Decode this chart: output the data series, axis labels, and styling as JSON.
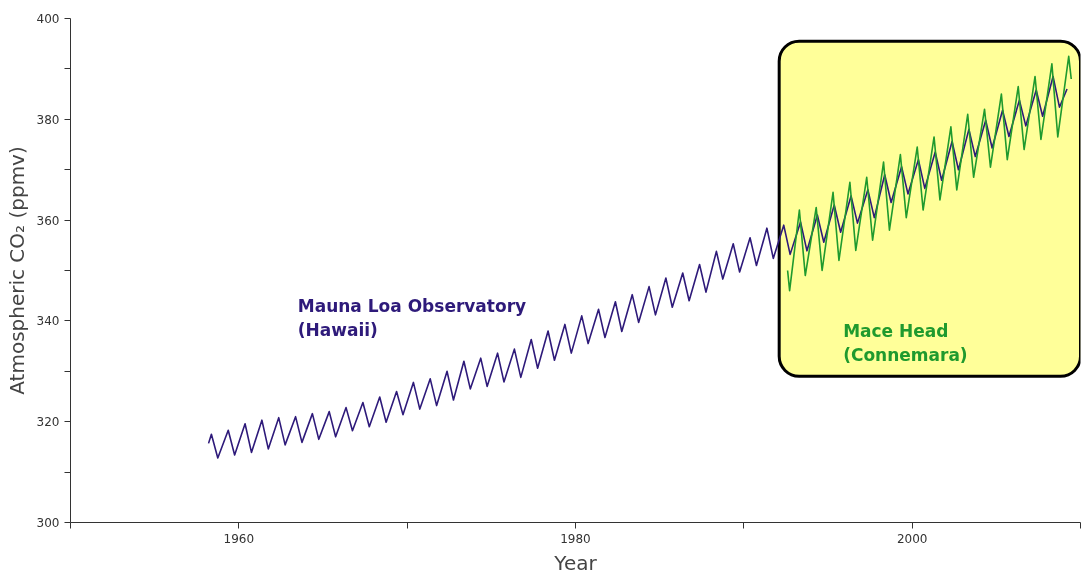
{
  "chart_data": {
    "type": "line",
    "xlabel": "Year",
    "ylabel": "Atmospheric CO₂ (ppmv)",
    "xlim": [
      1950,
      2010
    ],
    "ylim": [
      300,
      400
    ],
    "xticks": [
      {
        "value": 1950,
        "label": null
      },
      1960,
      {
        "value": 1970,
        "label": null
      },
      1980,
      {
        "value": 1990,
        "label": null
      },
      2000,
      {
        "value": 2010,
        "label": null
      }
    ],
    "yticks": [
      300,
      {
        "value": 310,
        "label": null
      },
      320,
      {
        "value": 330,
        "label": null
      },
      340,
      {
        "value": 350,
        "label": null
      },
      360,
      {
        "value": 370,
        "label": null
      },
      380,
      {
        "value": 390,
        "label": null
      },
      400
    ],
    "bands": [
      {
        "axis": "x",
        "from": 1992.1,
        "to": 2010,
        "color": "#ffff99"
      }
    ],
    "grid": false,
    "line_style": "solid",
    "marker": "none",
    "series": [
      {
        "name": "Mauna Loa Observatory\n(Hawaii)",
        "color": "#2e1a7a",
        "x": [
          1958.2,
          1958.37,
          1958.75,
          1959.37,
          1959.75,
          1960.37,
          1960.75,
          1961.37,
          1961.75,
          1962.37,
          1962.75,
          1963.37,
          1963.75,
          1964.37,
          1964.75,
          1965.37,
          1965.75,
          1966.37,
          1966.75,
          1967.37,
          1967.75,
          1968.37,
          1968.75,
          1969.37,
          1969.75,
          1970.37,
          1970.75,
          1971.37,
          1971.75,
          1972.37,
          1972.75,
          1973.37,
          1973.75,
          1974.37,
          1974.75,
          1975.37,
          1975.75,
          1976.37,
          1976.75,
          1977.37,
          1977.75,
          1978.37,
          1978.75,
          1979.37,
          1979.75,
          1980.37,
          1980.75,
          1981.37,
          1981.75,
          1982.37,
          1982.75,
          1983.37,
          1983.75,
          1984.37,
          1984.75,
          1985.37,
          1985.75,
          1986.37,
          1986.75,
          1987.37,
          1987.75,
          1988.37,
          1988.75,
          1989.37,
          1989.75,
          1990.37,
          1990.75,
          1991.37,
          1991.75,
          1992.37,
          1992.75,
          1993.37,
          1993.75,
          1994.37,
          1994.75,
          1995.37,
          1995.75,
          1996.37,
          1996.75,
          1997.37,
          1997.75,
          1998.37,
          1998.75,
          1999.37,
          1999.75,
          2000.37,
          2000.75,
          2001.37,
          2001.75,
          2002.37,
          2002.75,
          2003.37,
          2003.75,
          2004.37,
          2004.75,
          2005.37,
          2005.75,
          2006.37,
          2006.75,
          2007.37,
          2007.75,
          2008.37,
          2008.75,
          2009.2
        ],
        "values": [
          315.7,
          317.5,
          312.8,
          318.3,
          313.4,
          319.6,
          313.9,
          320.3,
          314.6,
          320.8,
          315.4,
          321.0,
          315.9,
          321.6,
          316.5,
          322.0,
          317.0,
          322.8,
          318.2,
          323.8,
          319.0,
          324.9,
          319.9,
          326.0,
          321.4,
          327.8,
          322.5,
          328.5,
          323.2,
          330.0,
          324.3,
          332.0,
          326.5,
          332.6,
          327.0,
          333.6,
          327.9,
          334.4,
          328.8,
          336.3,
          330.6,
          338.0,
          332.2,
          339.3,
          333.6,
          341.0,
          335.5,
          342.3,
          336.7,
          343.8,
          337.9,
          345.2,
          339.7,
          346.8,
          341.2,
          348.5,
          342.7,
          349.5,
          344.0,
          351.2,
          345.7,
          353.8,
          348.3,
          355.3,
          349.7,
          356.5,
          351.0,
          358.4,
          352.4,
          359.0,
          353.2,
          359.6,
          353.9,
          361.0,
          355.6,
          363.0,
          357.6,
          364.8,
          359.4,
          366.0,
          360.5,
          369.0,
          363.5,
          370.6,
          365.2,
          372.0,
          366.3,
          373.5,
          367.9,
          375.6,
          370.0,
          378.0,
          372.6,
          379.8,
          374.3,
          381.8,
          376.6,
          383.8,
          378.7,
          385.8,
          380.6,
          388.5,
          382.4,
          386.0
        ]
      },
      {
        "name": "Mace Head\n(Connemara)",
        "color": "#1f9a2e",
        "x": [
          1992.6,
          1992.72,
          1993.3,
          1993.65,
          1994.3,
          1994.65,
          1995.3,
          1995.65,
          1996.3,
          1996.65,
          1997.3,
          1997.65,
          1998.3,
          1998.65,
          1999.3,
          1999.65,
          2000.3,
          2000.65,
          2001.3,
          2001.65,
          2002.3,
          2002.65,
          2003.3,
          2003.65,
          2004.3,
          2004.65,
          2005.3,
          2005.65,
          2006.3,
          2006.65,
          2007.3,
          2007.65,
          2008.3,
          2008.65,
          2009.3,
          2009.45
        ],
        "values": [
          350.0,
          346.0,
          362.0,
          349.0,
          362.5,
          350.0,
          365.5,
          352.0,
          367.5,
          354.0,
          368.5,
          356.0,
          371.5,
          358.0,
          373.0,
          360.5,
          374.5,
          362.0,
          376.5,
          364.0,
          378.5,
          366.0,
          381.0,
          368.5,
          382.0,
          370.5,
          385.0,
          372.0,
          386.5,
          374.0,
          388.5,
          376.0,
          391.0,
          376.5,
          392.5,
          388.0
        ]
      }
    ]
  }
}
